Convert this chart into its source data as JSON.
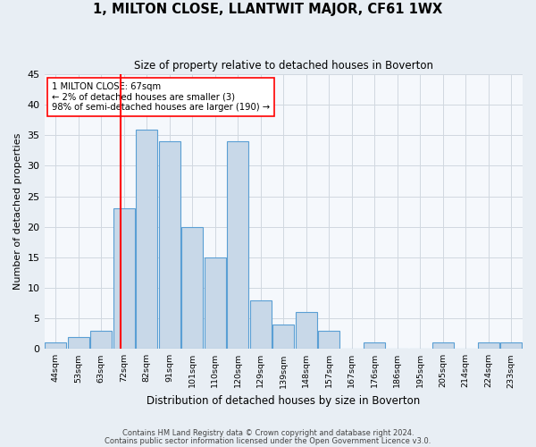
{
  "title": "1, MILTON CLOSE, LLANTWIT MAJOR, CF61 1WX",
  "subtitle": "Size of property relative to detached houses in Boverton",
  "xlabel": "Distribution of detached houses by size in Boverton",
  "ylabel": "Number of detached properties",
  "bar_labels": [
    "44sqm",
    "53sqm",
    "63sqm",
    "72sqm",
    "82sqm",
    "91sqm",
    "101sqm",
    "110sqm",
    "120sqm",
    "129sqm",
    "139sqm",
    "148sqm",
    "157sqm",
    "167sqm",
    "176sqm",
    "186sqm",
    "195sqm",
    "205sqm",
    "214sqm",
    "224sqm",
    "233sqm"
  ],
  "bar_values": [
    1,
    2,
    3,
    23,
    36,
    34,
    20,
    15,
    34,
    8,
    4,
    6,
    3,
    0,
    1,
    0,
    0,
    1,
    0,
    1,
    1
  ],
  "bar_color": "#c8d8e8",
  "bar_edge_color": "#5a9fd4",
  "ylim": [
    0,
    45
  ],
  "yticks": [
    0,
    5,
    10,
    15,
    20,
    25,
    30,
    35,
    40,
    45
  ],
  "red_line_index": 2.85,
  "annotation_title": "1 MILTON CLOSE: 67sqm",
  "annotation_line1": "← 2% of detached houses are smaller (3)",
  "annotation_line2": "98% of semi-detached houses are larger (190) →",
  "footnote1": "Contains HM Land Registry data © Crown copyright and database right 2024.",
  "footnote2": "Contains public sector information licensed under the Open Government Licence v3.0.",
  "background_color": "#e8eef4",
  "plot_bg_color": "#f5f8fc",
  "grid_color": "#d0d8e0"
}
